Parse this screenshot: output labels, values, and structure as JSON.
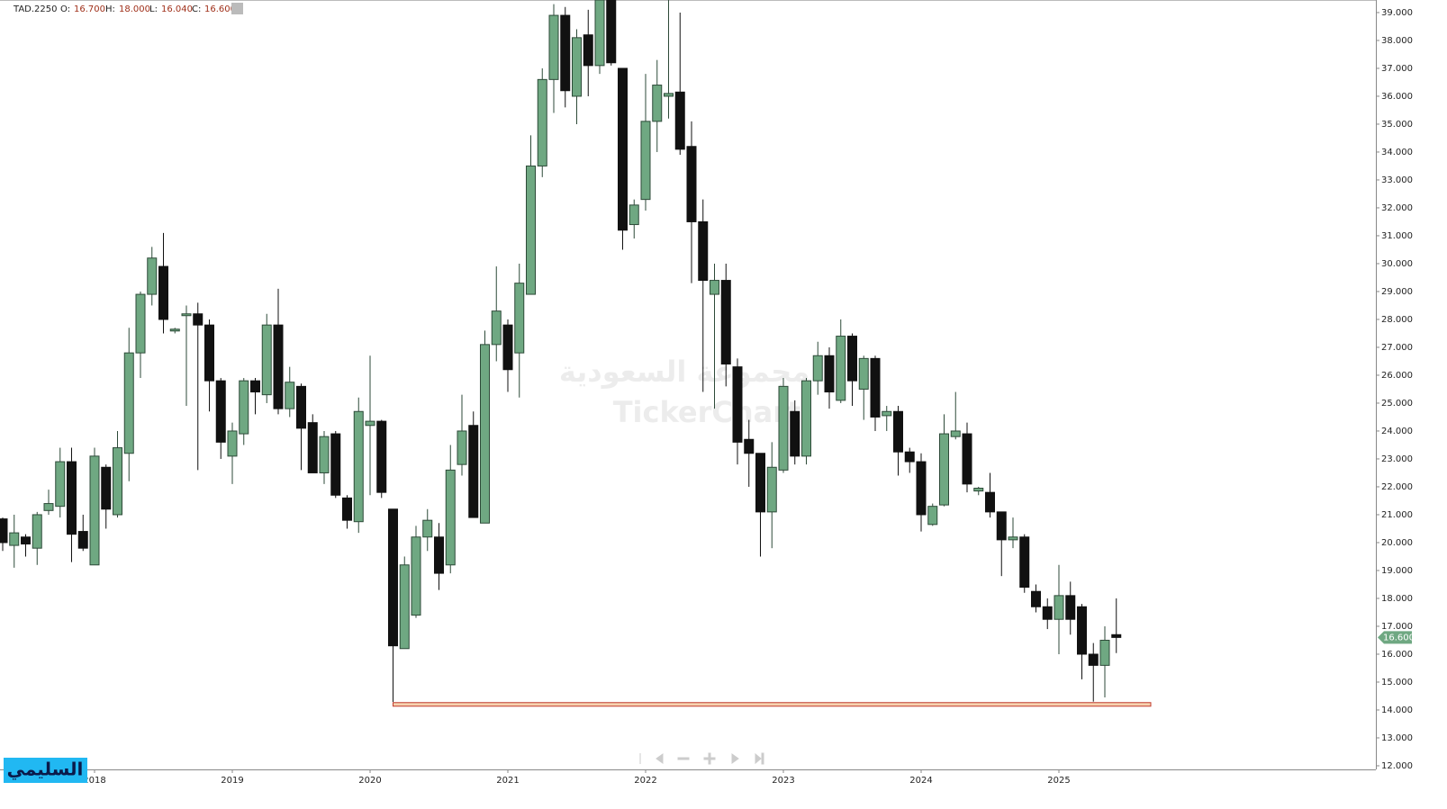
{
  "chart_data": {
    "type": "candlestick",
    "symbol": "TAD.2250",
    "header": [
      {
        "key": "O:",
        "value": 16.7,
        "label": "16.700"
      },
      {
        "key": "H:",
        "value": 18.0,
        "label": "18.000"
      },
      {
        "key": "L:",
        "value": 16.04,
        "label": "16.040"
      },
      {
        "key": "C:",
        "value": 16.6,
        "label": "16.600"
      }
    ],
    "last_price": {
      "value": 16.6,
      "label": "16.600"
    },
    "watermark": [
      "مجموعة السعودية",
      "TickerChart"
    ],
    "badge": "السليمي",
    "up_color": "#6fa882",
    "down_color": "#111111",
    "support_line": {
      "value": 14.2,
      "start": 34,
      "end": 100,
      "color": "#c0392b"
    },
    "ylim": [
      11.87,
      39.45
    ],
    "yticks": [
      {
        "value": 12,
        "label": "12.000"
      },
      {
        "value": 13,
        "label": "13.000"
      },
      {
        "value": 14,
        "label": "14.000"
      },
      {
        "value": 15,
        "label": "15.000"
      },
      {
        "value": 16,
        "label": "16.000"
      },
      {
        "value": 17,
        "label": "17.000"
      },
      {
        "value": 18,
        "label": "18.000"
      },
      {
        "value": 19,
        "label": "19.000"
      },
      {
        "value": 20,
        "label": "20.000"
      },
      {
        "value": 21,
        "label": "21.000"
      },
      {
        "value": 22,
        "label": "22.000"
      },
      {
        "value": 23,
        "label": "23.000"
      },
      {
        "value": 24,
        "label": "24.000"
      },
      {
        "value": 25,
        "label": "25.000"
      },
      {
        "value": 26,
        "label": "26.000"
      },
      {
        "value": 27,
        "label": "27.000"
      },
      {
        "value": 28,
        "label": "28.000"
      },
      {
        "value": 29,
        "label": "29.000"
      },
      {
        "value": 30,
        "label": "30.000"
      },
      {
        "value": 31,
        "label": "31.000"
      },
      {
        "value": 32,
        "label": "32.000"
      },
      {
        "value": 33,
        "label": "33.000"
      },
      {
        "value": 34,
        "label": "34.000"
      },
      {
        "value": 35,
        "label": "35.000"
      },
      {
        "value": 36,
        "label": "36.000"
      },
      {
        "value": 37,
        "label": "37.000"
      },
      {
        "value": 38,
        "label": "38.000"
      },
      {
        "value": 39,
        "label": "39.000"
      }
    ],
    "categories": [
      null,
      null,
      null,
      null,
      null,
      null,
      null,
      null,
      "2018",
      null,
      null,
      null,
      null,
      null,
      null,
      null,
      null,
      null,
      null,
      null,
      "2019",
      null,
      null,
      null,
      null,
      null,
      null,
      null,
      null,
      null,
      null,
      null,
      "2020",
      null,
      null,
      null,
      null,
      null,
      null,
      null,
      null,
      null,
      null,
      null,
      "2021",
      null,
      null,
      null,
      null,
      null,
      null,
      null,
      null,
      null,
      null,
      null,
      "2022",
      null,
      null,
      null,
      null,
      null,
      null,
      null,
      null,
      null,
      null,
      null,
      "2023",
      null,
      null,
      null,
      null,
      null,
      null,
      null,
      null,
      null,
      null,
      null,
      "2024",
      null,
      null,
      null,
      null,
      null,
      null,
      null,
      null,
      null,
      null,
      null,
      "2025",
      null,
      null,
      null,
      null,
      null
    ],
    "open": [
      20.85,
      19.9,
      20.2,
      19.8,
      21.15,
      21.3,
      22.9,
      20.4,
      19.2,
      22.7,
      21.0,
      23.2,
      26.8,
      28.9,
      29.9,
      27.6,
      28.2,
      28.2,
      27.8,
      25.8,
      23.1,
      23.9,
      25.8,
      25.3,
      27.8,
      24.8,
      25.6,
      24.3,
      22.5,
      23.9,
      21.6,
      20.75,
      24.2,
      24.35,
      21.2,
      16.2,
      17.4,
      20.2,
      20.2,
      19.2,
      22.8,
      24.2,
      20.7,
      27.1,
      27.8,
      26.8,
      28.9,
      33.5,
      36.6,
      38.9,
      36.0,
      38.2,
      37.1,
      39.45,
      37.0,
      31.4,
      32.3,
      35.1,
      36.0,
      36.15,
      34.2,
      31.5,
      28.9,
      29.4,
      26.3,
      23.7,
      23.2,
      21.1,
      22.6,
      24.7,
      23.1,
      25.8,
      26.7,
      25.1,
      27.4,
      25.5,
      26.6,
      24.55,
      24.7,
      23.25,
      22.9,
      20.65,
      21.35,
      23.8,
      23.9,
      21.85,
      21.8,
      21.1,
      20.1,
      20.2,
      18.25,
      17.7,
      17.25,
      18.1,
      17.7,
      16.0,
      15.6,
      16.7
    ],
    "high": [
      20.9,
      21.0,
      20.3,
      21.1,
      21.9,
      23.4,
      23.4,
      21.0,
      23.4,
      22.8,
      24.0,
      27.7,
      29.0,
      30.6,
      31.1,
      27.7,
      28.5,
      28.6,
      28.0,
      25.9,
      24.3,
      25.9,
      25.9,
      28.2,
      29.1,
      26.3,
      25.7,
      24.6,
      24.0,
      24.0,
      21.7,
      25.2,
      26.7,
      24.4,
      21.2,
      19.5,
      20.6,
      21.2,
      20.7,
      23.5,
      25.3,
      24.7,
      27.6,
      29.9,
      28.0,
      30.0,
      34.6,
      37.0,
      39.3,
      39.2,
      38.4,
      39.1,
      39.45,
      39.45,
      37.0,
      32.3,
      36.8,
      37.3,
      39.45,
      39.0,
      35.1,
      32.3,
      30.0,
      30.0,
      26.6,
      24.4,
      23.2,
      23.6,
      25.9,
      25.1,
      25.9,
      27.2,
      27.0,
      28.0,
      27.5,
      26.7,
      26.7,
      24.9,
      24.9,
      23.4,
      23.2,
      21.4,
      24.6,
      25.4,
      24.3,
      22.0,
      22.5,
      21.1,
      20.9,
      20.3,
      18.5,
      18.0,
      19.2,
      18.6,
      17.8,
      16.4,
      17.0,
      18.0
    ],
    "low": [
      19.7,
      19.1,
      19.5,
      19.2,
      21.0,
      20.9,
      19.3,
      19.7,
      19.2,
      20.5,
      20.9,
      22.2,
      25.9,
      28.5,
      27.5,
      27.5,
      24.9,
      22.6,
      24.7,
      23.0,
      22.1,
      23.5,
      24.6,
      25.0,
      24.6,
      24.5,
      22.6,
      22.5,
      22.1,
      21.6,
      20.5,
      20.35,
      21.7,
      21.6,
      14.29,
      16.2,
      17.3,
      19.7,
      18.3,
      18.9,
      22.4,
      20.9,
      20.7,
      26.5,
      25.4,
      25.2,
      28.9,
      33.1,
      35.4,
      35.6,
      35.0,
      36.0,
      36.8,
      37.1,
      30.5,
      30.9,
      31.9,
      34.0,
      35.2,
      33.9,
      29.3,
      25.4,
      24.8,
      25.6,
      22.8,
      22.0,
      19.5,
      19.8,
      22.5,
      22.8,
      22.8,
      25.3,
      24.8,
      25.0,
      24.9,
      24.4,
      24.0,
      24.0,
      22.4,
      22.5,
      20.4,
      20.6,
      21.3,
      23.7,
      21.8,
      21.7,
      20.9,
      18.8,
      19.8,
      18.2,
      17.5,
      16.9,
      16.0,
      16.7,
      15.1,
      14.3,
      14.45,
      16.04
    ],
    "close": [
      20.0,
      20.35,
      19.95,
      21.0,
      21.4,
      22.9,
      20.3,
      19.8,
      23.1,
      21.2,
      23.4,
      26.8,
      28.9,
      30.2,
      28.0,
      27.65,
      28.2,
      27.8,
      25.8,
      23.6,
      24.0,
      25.8,
      25.4,
      27.8,
      24.8,
      25.75,
      24.1,
      22.5,
      23.8,
      21.7,
      20.8,
      24.7,
      24.35,
      21.8,
      16.3,
      19.2,
      20.2,
      20.8,
      18.9,
      22.6,
      24.0,
      20.9,
      27.1,
      28.3,
      26.2,
      29.3,
      33.5,
      36.6,
      38.9,
      36.2,
      38.1,
      37.1,
      39.45,
      37.2,
      31.2,
      32.1,
      35.1,
      36.4,
      36.1,
      34.1,
      31.5,
      29.4,
      29.4,
      26.4,
      23.6,
      23.2,
      21.1,
      22.7,
      25.6,
      23.1,
      25.8,
      26.7,
      25.4,
      27.4,
      25.8,
      26.6,
      24.5,
      24.7,
      23.25,
      22.9,
      21.0,
      21.3,
      23.9,
      24.0,
      22.1,
      21.95,
      21.1,
      20.1,
      20.2,
      18.4,
      17.7,
      17.25,
      18.1,
      17.25,
      16.0,
      15.6,
      16.5,
      16.6
    ]
  }
}
